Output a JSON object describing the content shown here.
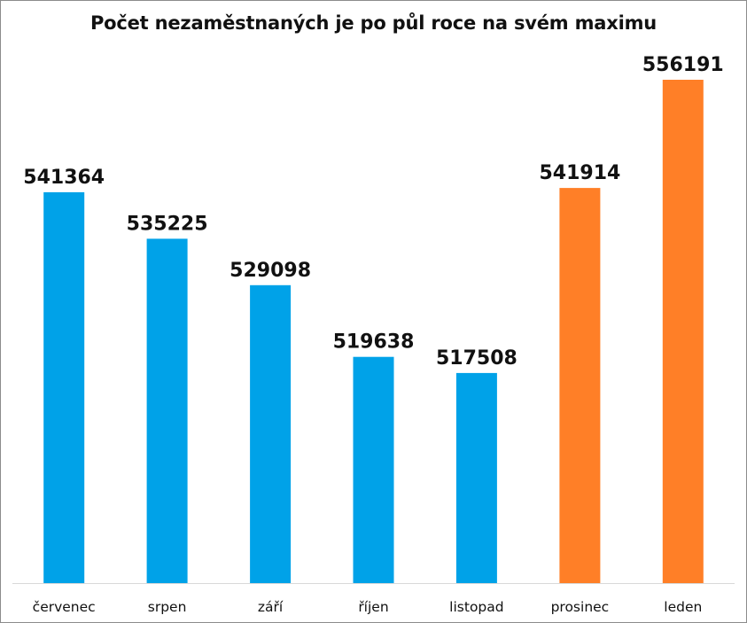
{
  "chart_data": {
    "type": "bar",
    "title": "Počet nezaměstnaných je po půl roce na svém maximu",
    "categories": [
      "červenec",
      "srpen",
      "září",
      "říjen",
      "listopad",
      "prosinec",
      "leden"
    ],
    "values": [
      541364,
      535225,
      529098,
      519638,
      517508,
      541914,
      556191
    ],
    "data_labels": [
      "541364",
      "535225",
      "529098",
      "519638",
      "517508",
      "541914",
      "556191"
    ],
    "bar_colors": [
      "#00a2e8",
      "#00a2e8",
      "#00a2e8",
      "#00a2e8",
      "#00a2e8",
      "#ff7f27",
      "#ff7f27"
    ],
    "xlabel": "",
    "ylabel": "",
    "y_axis_visible": false,
    "grid": false,
    "legend": "none"
  }
}
